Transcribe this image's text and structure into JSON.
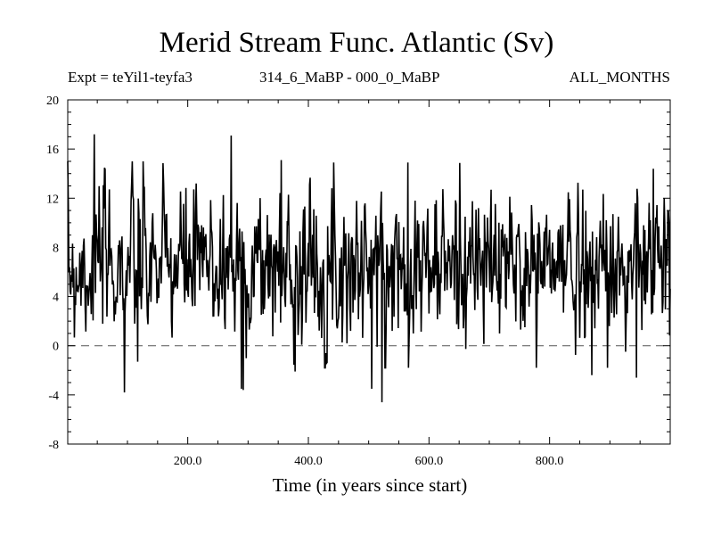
{
  "chart_data": {
    "type": "line",
    "title": "Merid Stream Func. Atlantic (Sv)",
    "subtitle_left": "Expt = teYil1-teyfa3",
    "subtitle_center": "314_6_MaBP - 000_0_MaBP",
    "subtitle_right": "ALL_MONTHS",
    "xlabel": "Time (in years since start)",
    "ylabel": "",
    "xlim": [
      1,
      1000
    ],
    "ylim": [
      -8,
      20
    ],
    "xticks": [
      200,
      400,
      600,
      800
    ],
    "xtick_labels": [
      "200.0",
      "400.0",
      "600.0",
      "800.0"
    ],
    "yticks": [
      -8,
      -4,
      0,
      4,
      8,
      12,
      16,
      20
    ],
    "ytick_labels": [
      "-8",
      "-4",
      "0",
      "4",
      "8",
      "12",
      "16",
      "20"
    ],
    "reference_line": {
      "y": 0,
      "style": "dashed"
    },
    "series": [
      {
        "name": "Merid Stream Func. Atlantic",
        "color": "#000000",
        "mean": 6.5,
        "std": 3.0,
        "seed": 7,
        "notable_points": [
          [
            45,
            17.2
          ],
          [
            95,
            -3.8
          ],
          [
            117,
            -1.3
          ],
          [
            272,
            17.1
          ],
          [
            289,
            -3.5
          ],
          [
            292,
            -3.6
          ],
          [
            355,
            15.1
          ],
          [
            378,
            -2.1
          ],
          [
            505,
            -3.5
          ],
          [
            522,
            -4.6
          ],
          [
            565,
            14.9
          ],
          [
            660,
            10.5
          ],
          [
            855,
            12.7
          ],
          [
            870,
            -2.4
          ],
          [
            944,
            -2.6
          ],
          [
            972,
            14.4
          ],
          [
            990,
            12.0
          ]
        ]
      }
    ]
  }
}
